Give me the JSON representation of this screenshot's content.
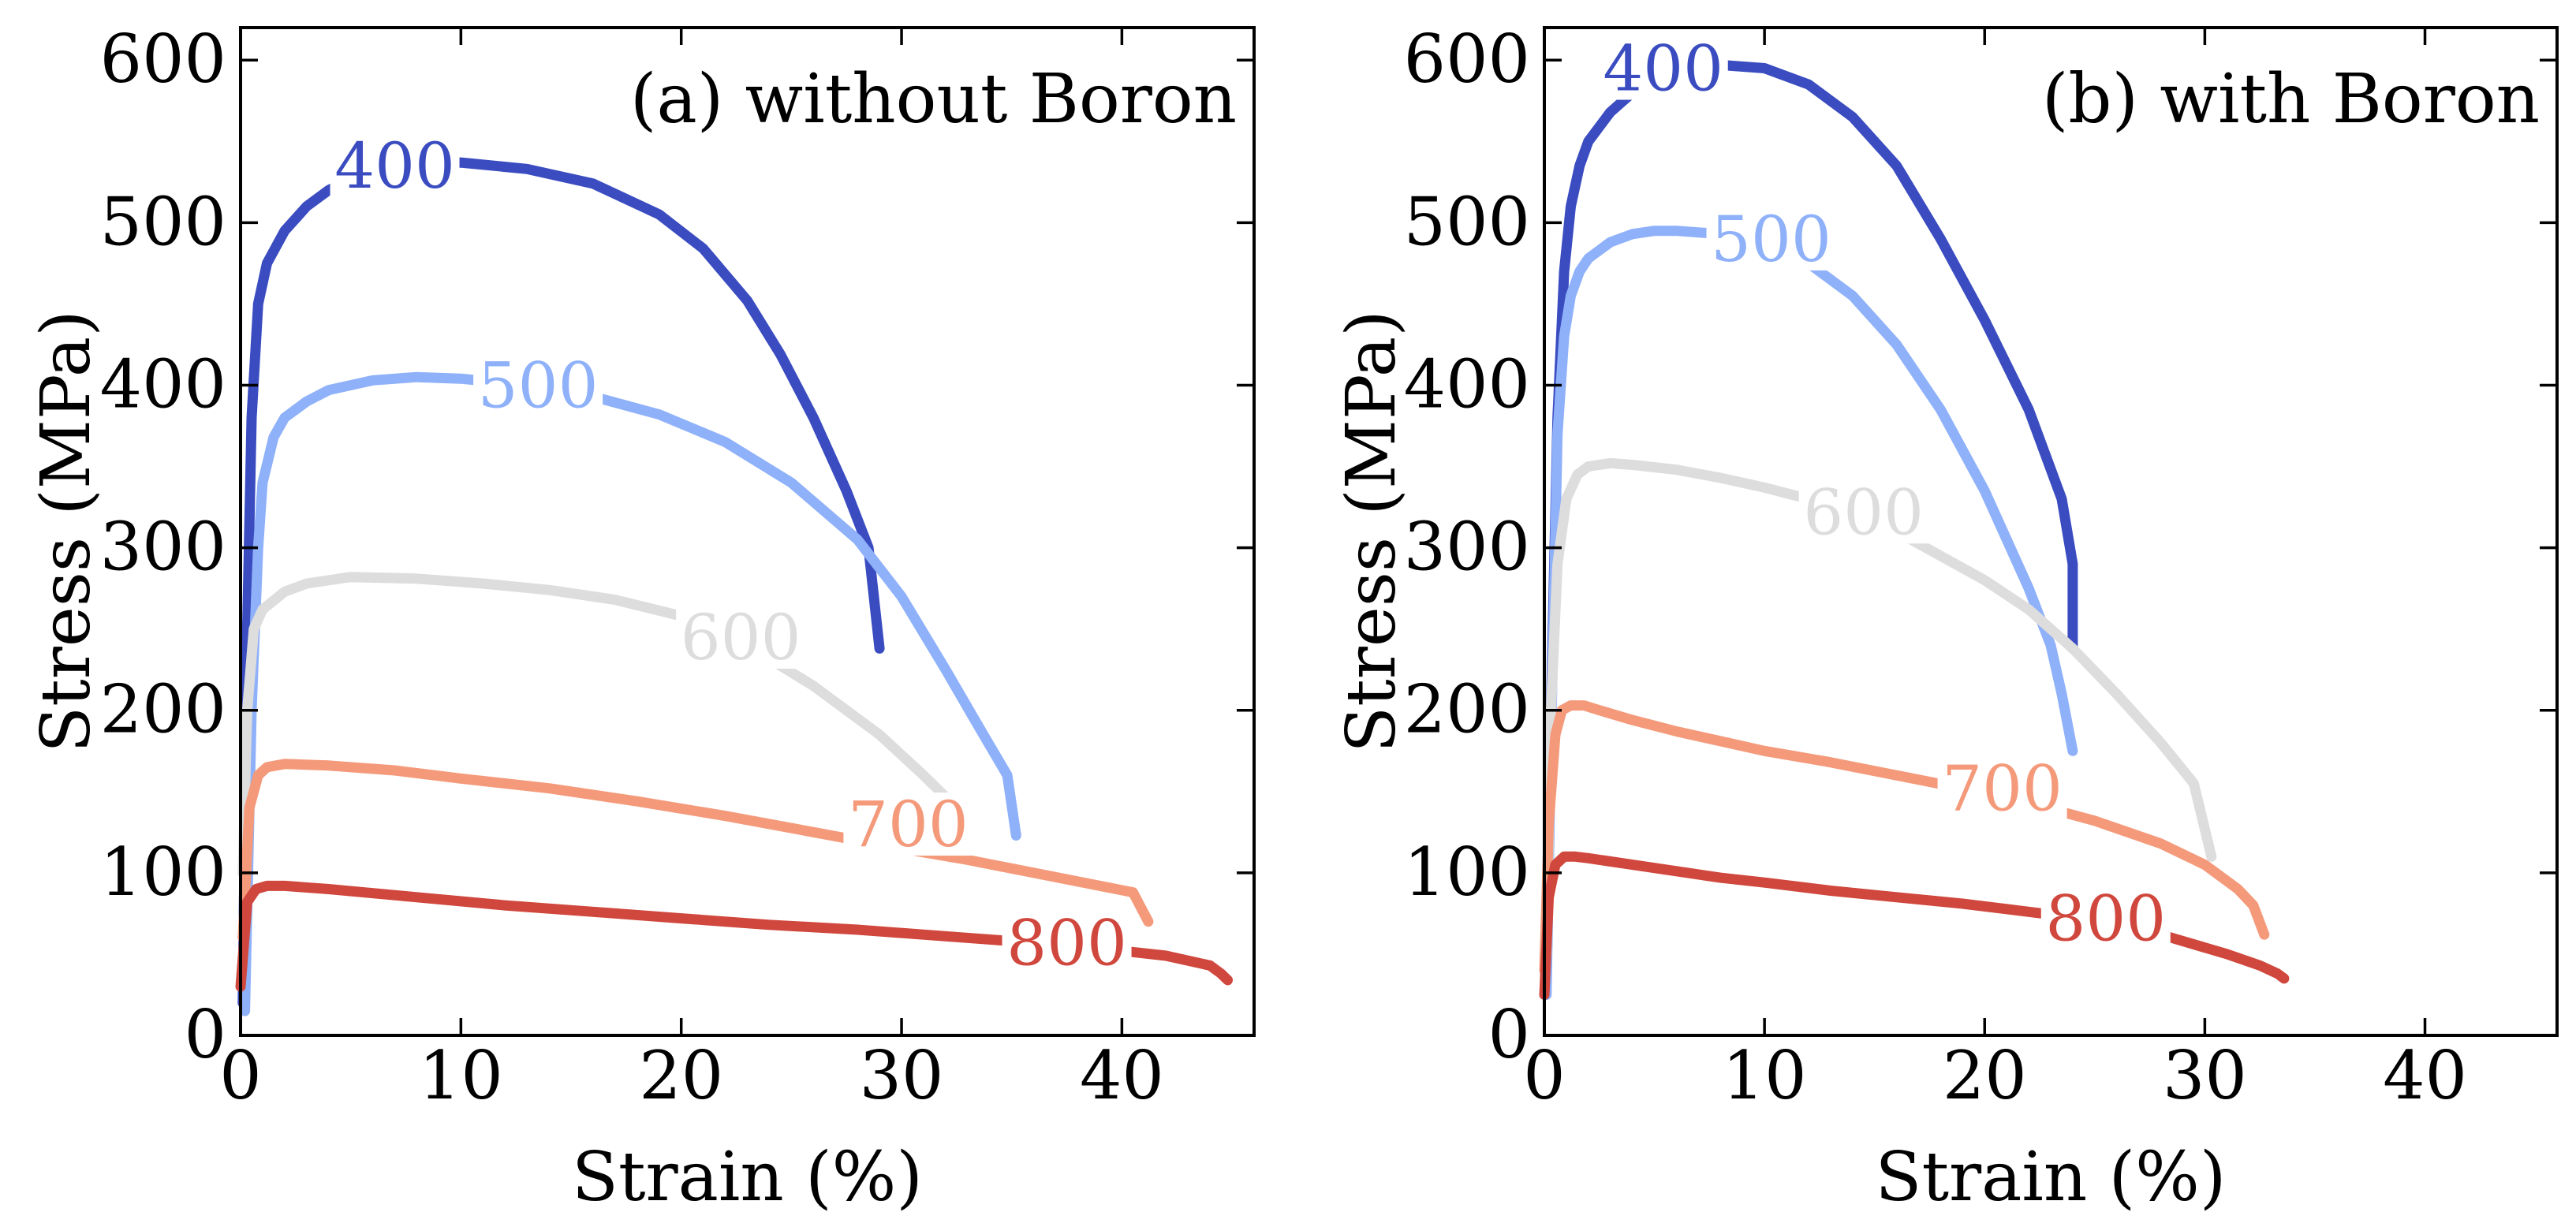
{
  "chart_data": [
    {
      "type": "line",
      "title": "(a) without Boron",
      "xlabel": "Strain (%)",
      "ylabel": "Stress (MPa)",
      "xlim": [
        0,
        46
      ],
      "ylim": [
        0,
        620
      ],
      "xticks": [
        "0",
        "10",
        "20",
        "30",
        "40"
      ],
      "yticks": [
        "0",
        "100",
        "200",
        "300",
        "400",
        "500",
        "600"
      ],
      "series": [
        {
          "name": "400",
          "color": "#3a4cc0",
          "x": [
            0.1,
            0.3,
            0.5,
            0.8,
            1.2,
            2,
            3,
            4,
            5,
            6,
            8,
            10,
            13,
            16,
            19,
            21,
            23,
            24.5,
            26,
            27.5,
            28.5,
            29
          ],
          "y": [
            20,
            250,
            380,
            450,
            475,
            495,
            510,
            520,
            527,
            532,
            536,
            537,
            533,
            524,
            505,
            484,
            452,
            419,
            380,
            335,
            300,
            238
          ],
          "label_at": [
            7,
            535
          ]
        },
        {
          "name": "500",
          "color": "#8fb1f9",
          "x": [
            0.2,
            0.5,
            0.8,
            1,
            1.5,
            2,
            3,
            4,
            6,
            8,
            10,
            13,
            16,
            19,
            22,
            25,
            28,
            30,
            32,
            33.5,
            34.8,
            35.2
          ],
          "y": [
            15,
            200,
            300,
            340,
            368,
            380,
            390,
            397,
            403,
            405,
            404,
            400,
            393,
            382,
            365,
            340,
            305,
            270,
            225,
            190,
            160,
            123
          ],
          "label_at": [
            13.5,
            400
          ]
        },
        {
          "name": "600",
          "color": "#dddddd",
          "x": [
            0.1,
            0.3,
            0.6,
            1,
            2,
            3,
            5,
            8,
            11,
            14,
            17,
            20,
            23,
            26,
            29,
            31,
            32.5,
            33
          ],
          "y": [
            100,
            200,
            250,
            262,
            273,
            278,
            282,
            281,
            278,
            274,
            268,
            258,
            240,
            215,
            185,
            160,
            140,
            125
          ],
          "label_at": [
            22.7,
            245
          ]
        },
        {
          "name": "700",
          "color": "#f49a7b",
          "x": [
            0.1,
            0.4,
            0.8,
            1.2,
            2,
            4,
            7,
            10,
            14,
            18,
            22,
            26,
            30,
            33,
            36,
            39,
            40.5,
            41.2
          ],
          "y": [
            60,
            140,
            160,
            165,
            167,
            166,
            163,
            158,
            152,
            144,
            135,
            125,
            115,
            108,
            100,
            92,
            88,
            70
          ],
          "label_at": [
            30.3,
            130
          ]
        },
        {
          "name": "800",
          "color": "#d0473d",
          "x": [
            0,
            0.3,
            0.7,
            1.2,
            2,
            4,
            8,
            12,
            16,
            20,
            24,
            28,
            32,
            36,
            40,
            42,
            44,
            44.5,
            44.8
          ],
          "y": [
            30,
            82,
            90,
            92,
            92,
            90,
            85,
            80,
            76,
            72,
            68,
            65,
            61,
            57,
            52,
            49,
            43,
            38,
            34
          ],
          "label_at": [
            37.5,
            57
          ]
        }
      ]
    },
    {
      "type": "line",
      "title": "(b) with Boron",
      "xlabel": "Strain (%)",
      "ylabel": "Stress (MPa)",
      "xlim": [
        0,
        46
      ],
      "ylim": [
        0,
        620
      ],
      "xticks": [
        "0",
        "10",
        "20",
        "30",
        "40"
      ],
      "yticks": [
        "0",
        "100",
        "200",
        "300",
        "400",
        "500",
        "600"
      ],
      "series": [
        {
          "name": "400",
          "color": "#3a4cc0",
          "x": [
            0.1,
            0.3,
            0.6,
            0.9,
            1.2,
            1.6,
            2,
            3,
            4,
            5,
            6,
            8,
            10,
            12,
            14,
            16,
            18,
            20,
            22,
            23.5,
            24,
            24
          ],
          "y": [
            30,
            200,
            380,
            470,
            510,
            535,
            550,
            568,
            580,
            588,
            593,
            597,
            595,
            585,
            565,
            535,
            490,
            440,
            385,
            330,
            290,
            238
          ],
          "label_at": [
            5.4,
            595
          ]
        },
        {
          "name": "500",
          "color": "#8fb1f9",
          "x": [
            0.1,
            0.3,
            0.6,
            0.9,
            1.2,
            1.6,
            2,
            3,
            4,
            5,
            6,
            8,
            10,
            12,
            14,
            16,
            18,
            20,
            22,
            23,
            23.5,
            24
          ],
          "y": [
            25,
            180,
            370,
            430,
            455,
            470,
            478,
            488,
            493,
            495,
            495,
            493,
            487,
            475,
            455,
            425,
            385,
            335,
            275,
            240,
            210,
            175
          ],
          "label_at": [
            10.3,
            490
          ]
        },
        {
          "name": "600",
          "color": "#dddddd",
          "x": [
            0.1,
            0.3,
            0.6,
            1,
            1.5,
            2,
            3,
            4,
            6,
            8,
            10,
            12,
            14,
            16,
            18,
            20,
            22,
            24,
            26,
            28,
            29.5,
            30.3
          ],
          "y": [
            50,
            200,
            290,
            330,
            345,
            350,
            352,
            351,
            348,
            343,
            337,
            330,
            320,
            310,
            295,
            280,
            262,
            238,
            210,
            180,
            155,
            110
          ],
          "label_at": [
            14.5,
            322
          ]
        },
        {
          "name": "700",
          "color": "#f49a7b",
          "x": [
            0,
            0.2,
            0.5,
            0.8,
            1.2,
            1.8,
            2.5,
            4,
            6,
            8,
            10,
            13,
            16,
            19,
            22,
            25,
            28,
            30,
            31.5,
            32.2,
            32.7
          ],
          "y": [
            40,
            130,
            185,
            200,
            203,
            203,
            200,
            194,
            187,
            181,
            175,
            168,
            160,
            152,
            143,
            132,
            118,
            105,
            90,
            80,
            62
          ],
          "label_at": [
            20.8,
            152
          ]
        },
        {
          "name": "800",
          "color": "#d0473d",
          "x": [
            0,
            0.2,
            0.5,
            0.9,
            1.4,
            2,
            4,
            6,
            8,
            10,
            13,
            16,
            19,
            22,
            25,
            28,
            31,
            32.5,
            33.3,
            33.6
          ],
          "y": [
            25,
            85,
            105,
            110,
            110,
            109,
            105,
            101,
            97,
            94,
            89,
            85,
            81,
            76,
            71,
            62,
            50,
            43,
            38,
            35
          ],
          "label_at": [
            25.5,
            72
          ]
        }
      ]
    }
  ]
}
